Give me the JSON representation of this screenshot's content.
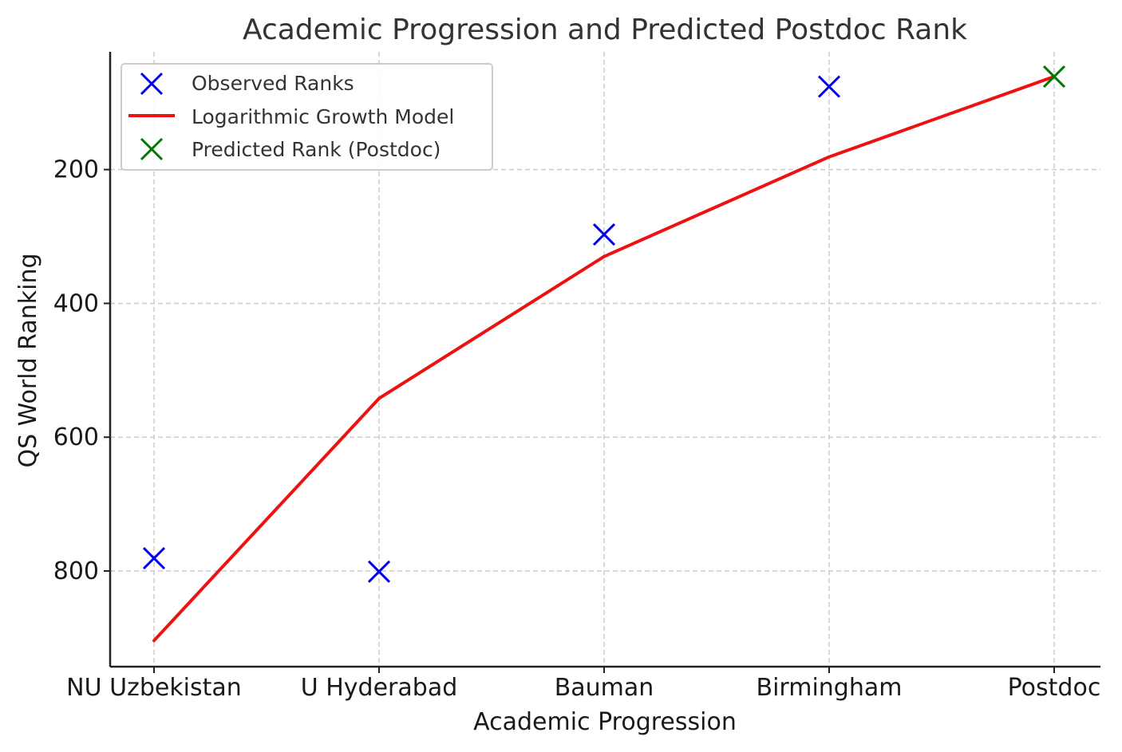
{
  "chart_data": {
    "type": "line",
    "title": "Academic Progression and Predicted Postdoc Rank",
    "xlabel": "Academic Progression",
    "ylabel": "QS World Ranking",
    "categories": [
      "NU Uzbekistan",
      "U Hyderabad",
      "Bauman",
      "Birmingham",
      "Postdoc"
    ],
    "y_axis": {
      "inverted": true,
      "ylim": [
        943,
        24
      ],
      "ticks": [
        200,
        400,
        600,
        800
      ],
      "tick_labels": [
        "200",
        "400",
        "600",
        "800"
      ]
    },
    "grid": true,
    "legend_position": "top-left",
    "series": [
      {
        "name": "Observed Ranks",
        "kind": "scatter",
        "marker": "x",
        "color": "#0000ee",
        "x": [
          "NU Uzbekistan",
          "U Hyderabad",
          "Bauman",
          "Birmingham"
        ],
        "values": [
          781,
          801,
          297,
          76
        ]
      },
      {
        "name": "Logarithmic Growth Model",
        "kind": "line",
        "color": "#ee1111",
        "x": [
          "NU Uzbekistan",
          "U Hyderabad",
          "Bauman",
          "Birmingham",
          "Postdoc"
        ],
        "values": [
          904,
          542,
          330,
          181,
          61
        ]
      },
      {
        "name": "Predicted Rank (Postdoc)",
        "kind": "scatter",
        "marker": "x",
        "color": "#007700",
        "x": [
          "Postdoc"
        ],
        "values": [
          61
        ]
      }
    ]
  }
}
